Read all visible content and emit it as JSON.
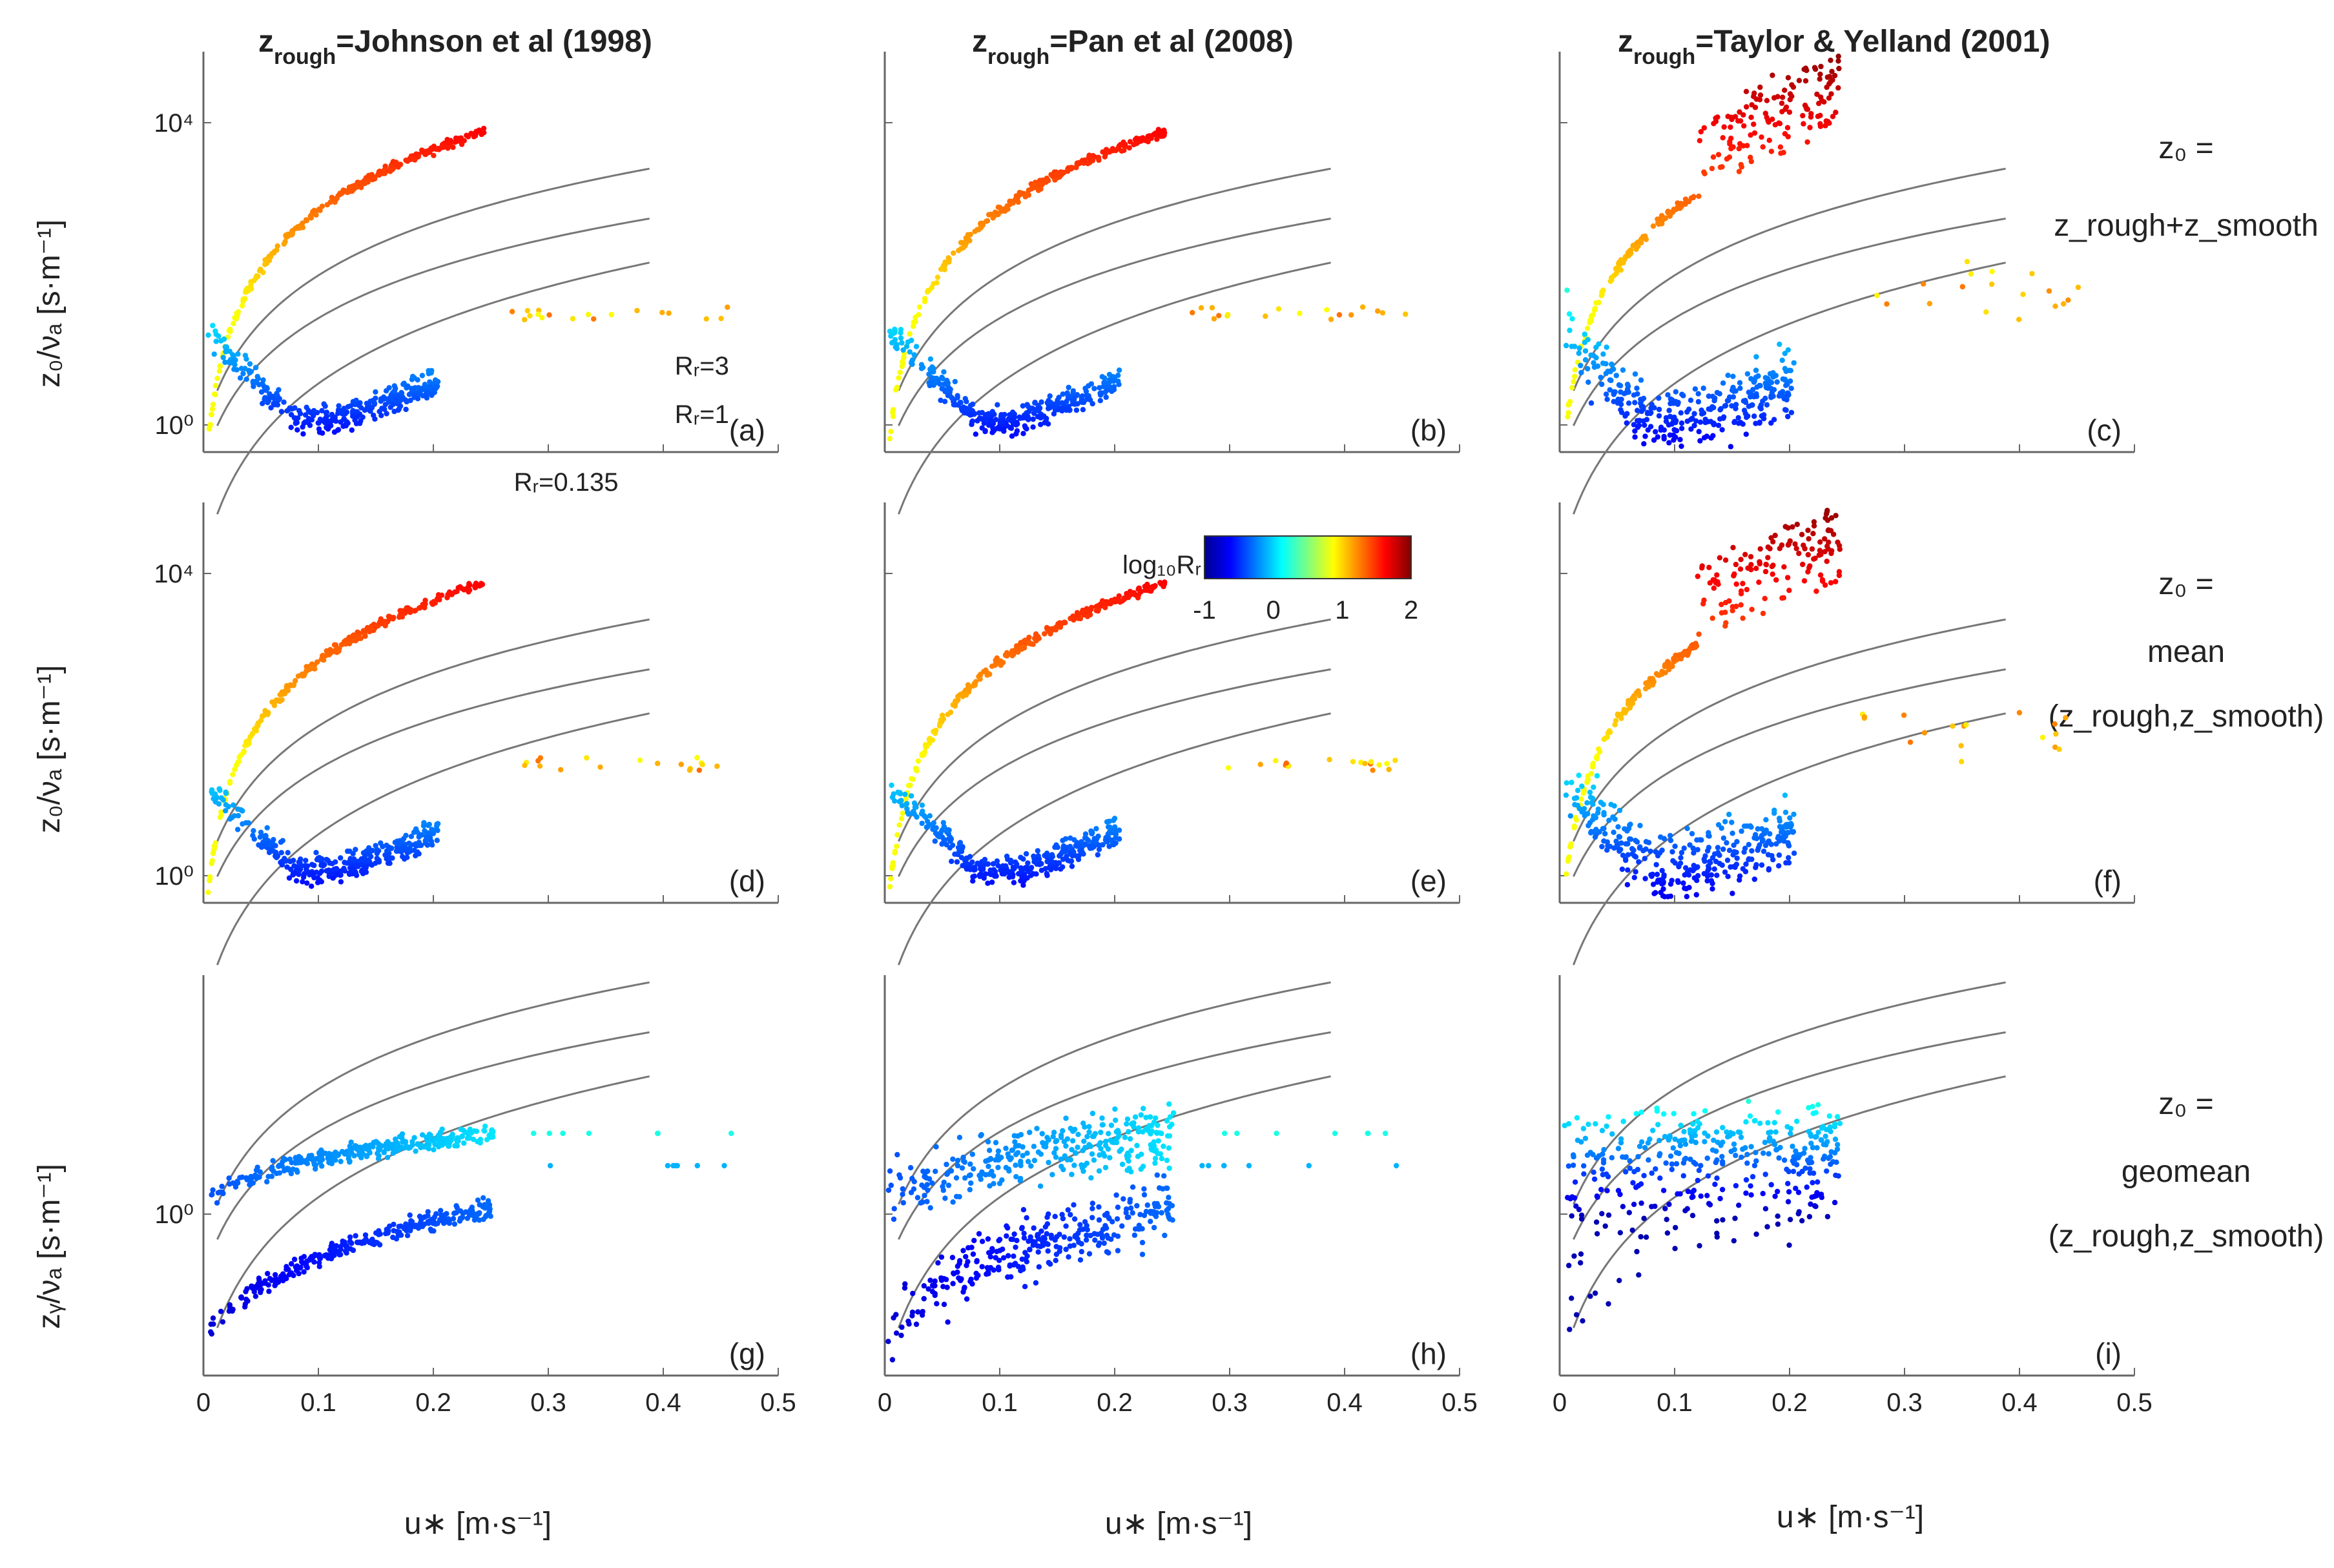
{
  "figure": {
    "column_titles": [
      {
        "prefix": "z",
        "sub": "rough",
        "rest": "=Johnson et al (1998)"
      },
      {
        "prefix": "z",
        "sub": "rough",
        "rest": "=Pan et al (2008)"
      },
      {
        "prefix": "z",
        "sub": "rough",
        "rest": "=Taylor & Yelland (2001)"
      }
    ],
    "row_labels": [
      {
        "line1": "z₀ =",
        "line2": "z_rough+z_smooth",
        "line3": ""
      },
      {
        "line1": "z₀ =",
        "line2": "mean",
        "line3": "(z_rough,z_smooth)"
      },
      {
        "line1": "z₀ =",
        "line2": "geomean",
        "line3": "(z_rough,z_smooth)"
      }
    ],
    "y_labels": [
      "z₀/νₐ [s·m⁻¹]",
      "z₀/νₐ [s·m⁻¹]",
      "zᵧ/νₐ [s·m⁻¹]"
    ],
    "x_label": "u∗ [m·s⁻¹]",
    "colorbar": {
      "label": "log₁₀Rᵣ",
      "ticks": [
        "-1",
        "0",
        "1",
        "2"
      ],
      "range": [
        -1,
        2
      ]
    },
    "curve_labels": [
      "Rᵣ=3",
      "Rᵣ=1",
      "Rᵣ=0.135"
    ]
  },
  "chart_data": {
    "type": "scatter",
    "x_axis": {
      "label": "u∗ [m·s⁻¹]",
      "range": [
        0,
        0.5
      ],
      "ticks": [
        "0",
        "0.1",
        "0.2",
        "0.3",
        "0.4",
        "0.5"
      ]
    },
    "y_axis": {
      "scale": "log",
      "ticks": [
        "10⁴",
        "10⁰"
      ]
    },
    "reference_curves": [
      {
        "name": "Rᵣ=3"
      },
      {
        "name": "Rᵣ=1"
      },
      {
        "name": "Rᵣ=0.135"
      }
    ],
    "panels": [
      {
        "id": "(a)",
        "row": 0,
        "col": 0,
        "shape": "curve"
      },
      {
        "id": "(b)",
        "row": 0,
        "col": 1,
        "shape": "curve"
      },
      {
        "id": "(c)",
        "row": 0,
        "col": 2,
        "shape": "curve_scatter"
      },
      {
        "id": "(d)",
        "row": 1,
        "col": 0,
        "shape": "curve"
      },
      {
        "id": "(e)",
        "row": 1,
        "col": 1,
        "shape": "curve"
      },
      {
        "id": "(f)",
        "row": 1,
        "col": 2,
        "shape": "curve_scatter"
      },
      {
        "id": "(g)",
        "row": 2,
        "col": 0,
        "shape": "rising"
      },
      {
        "id": "(h)",
        "row": 2,
        "col": 1,
        "shape": "rising_scatter"
      },
      {
        "id": "(i)",
        "row": 2,
        "col": 2,
        "shape": "cloud"
      }
    ]
  }
}
